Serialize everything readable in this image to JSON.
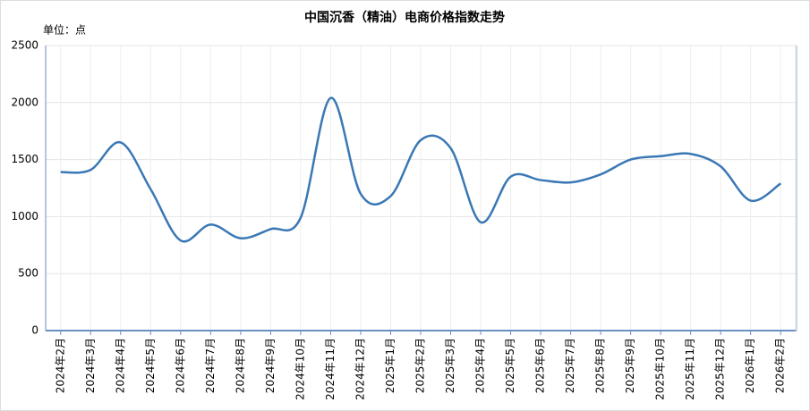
{
  "chart_data": {
    "type": "line",
    "title": "中国沉香（精油）电商价格指数走势",
    "unit_label": "单位：点",
    "categories": [
      "2024年2月",
      "2024年3月",
      "2024年4月",
      "2024年5月",
      "2024年6月",
      "2024年7月",
      "2024年8月",
      "2024年9月",
      "2024年10月",
      "2024年11月",
      "2024年12月",
      "2025年1月",
      "2025年2月",
      "2025年3月",
      "2025年4月",
      "2025年5月",
      "2025年6月",
      "2025年7月",
      "2025年8月",
      "2025年9月",
      "2025年10月",
      "2025年11月",
      "2025年12月",
      "2026年1月",
      "2026年2月"
    ],
    "series": [
      {
        "name": "中国沉香（精油）电商价格指数",
        "color": "#3a78b5",
        "values": [
          1390,
          1410,
          1650,
          1240,
          790,
          930,
          810,
          890,
          990,
          2040,
          1200,
          1180,
          1670,
          1600,
          950,
          1350,
          1320,
          1300,
          1370,
          1500,
          1530,
          1550,
          1440,
          1140,
          1290
        ]
      }
    ],
    "ylim": [
      0,
      2500
    ],
    "yticks": [
      0,
      500,
      1000,
      1500,
      2000,
      2500
    ],
    "grid": true,
    "smooth": true
  }
}
